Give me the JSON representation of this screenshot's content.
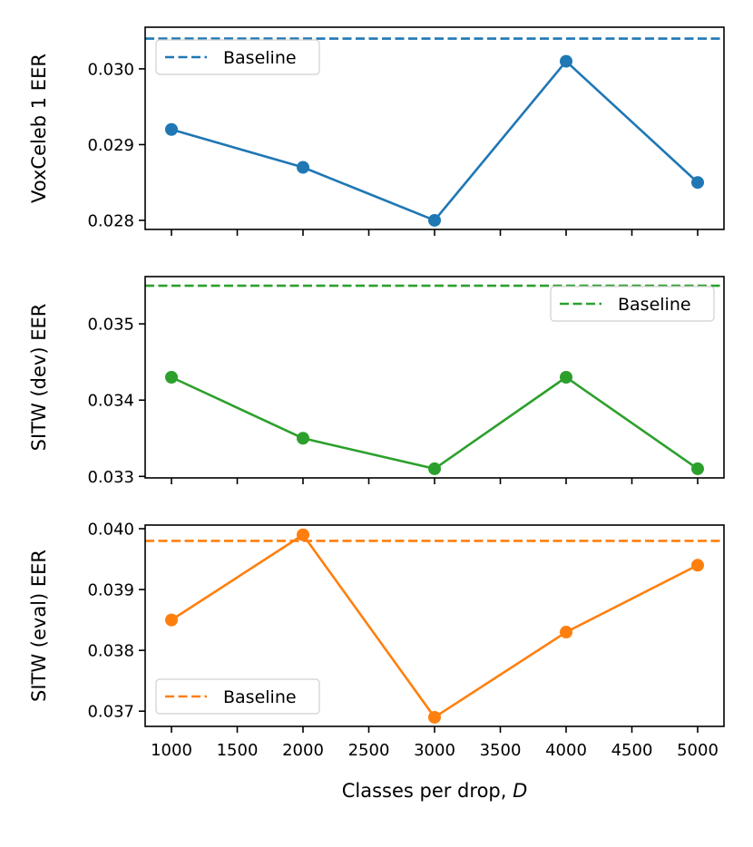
{
  "chart_data": [
    {
      "type": "line",
      "ylabel": "VoxCeleb 1 EER",
      "xlabel": "",
      "x": [
        1000,
        2000,
        3000,
        4000,
        5000
      ],
      "values": [
        0.0292,
        0.0287,
        0.028,
        0.0301,
        0.0285
      ],
      "baseline": 0.0304,
      "color": "#1f77b4",
      "ylim": [
        0.02788,
        0.03055
      ],
      "yticks": [
        0.028,
        0.029,
        0.03
      ],
      "ytick_labels": [
        "0.028",
        "0.029",
        "0.030"
      ],
      "legend": {
        "label": "Baseline",
        "position": "upper-left"
      }
    },
    {
      "type": "line",
      "ylabel": "SITW (dev) EER",
      "xlabel": "",
      "x": [
        1000,
        2000,
        3000,
        4000,
        5000
      ],
      "values": [
        0.0343,
        0.0335,
        0.0331,
        0.0343,
        0.0331
      ],
      "baseline": 0.0355,
      "color": "#2ca02c",
      "ylim": [
        0.03298,
        0.03562
      ],
      "yticks": [
        0.033,
        0.034,
        0.035
      ],
      "ytick_labels": [
        "0.033",
        "0.034",
        "0.035"
      ],
      "legend": {
        "label": "Baseline",
        "position": "upper-right"
      }
    },
    {
      "type": "line",
      "ylabel": "SITW (eval) EER",
      "xlabel": "Classes per drop, ",
      "xlabel_var": "D",
      "x": [
        1000,
        2000,
        3000,
        4000,
        5000
      ],
      "values": [
        0.0385,
        0.0399,
        0.0369,
        0.0383,
        0.0394
      ],
      "baseline": 0.0398,
      "color": "#ff7f0e",
      "ylim": [
        0.03675,
        0.04006
      ],
      "yticks": [
        0.037,
        0.038,
        0.039,
        0.04
      ],
      "ytick_labels": [
        "0.037",
        "0.038",
        "0.039",
        "0.040"
      ],
      "legend": {
        "label": "Baseline",
        "position": "lower-left"
      }
    }
  ],
  "x_axis": {
    "xlim": [
      800,
      5200
    ],
    "ticks": [
      1000,
      1500,
      2000,
      2500,
      3000,
      3500,
      4000,
      4500,
      5000
    ],
    "tick_labels": [
      "1000",
      "1500",
      "2000",
      "2500",
      "3000",
      "3500",
      "4000",
      "4500",
      "5000"
    ]
  }
}
